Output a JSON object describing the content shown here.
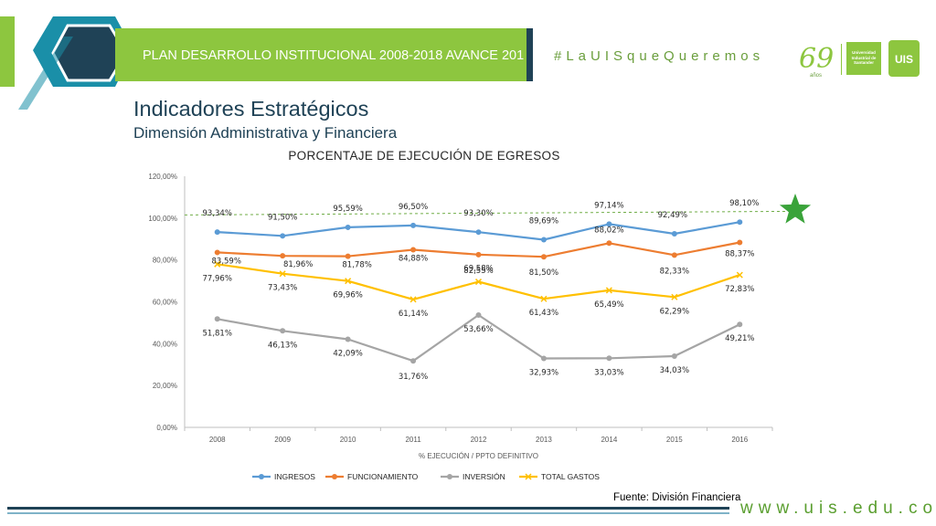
{
  "header": {
    "banner_text": "PLAN DESARROLLO INSTITUCIONAL 2008-2018 AVANCE 201",
    "hashtag": "#LaUISqueQueremos",
    "logo_69_text": "69",
    "logo_69_sub": "años",
    "logo_box_text": "Universidad Industrial de Santander",
    "logo_uis_text": "UIS",
    "title": "Indicadores Estratégicos",
    "subtitle": "Dimensión Administrativa y Financiera"
  },
  "footer": {
    "source": "Fuente: División Financiera",
    "website": "www.uis.edu.co"
  },
  "colors": {
    "green": "#8dc63f",
    "navy": "#1f4256",
    "teal": "#1a8fa8",
    "ingresos": "#5b9bd5",
    "funcionamiento": "#ed7d31",
    "inversion": "#a5a5a5",
    "total_gastos": "#ffc000",
    "target": "#70ad47",
    "star": "#3aa33a"
  },
  "chart_data": {
    "type": "line",
    "title": "PORCENTAJE DE EJECUCIÓN DE EGRESOS",
    "xlabel": "% EJECUCIÓN / PPTO DEFINITIVO",
    "ylabel": "",
    "categories": [
      "2008",
      "2009",
      "2010",
      "2011",
      "2012",
      "2013",
      "2014",
      "2015",
      "2016"
    ],
    "y_ticks": [
      "0,00%",
      "20,00%",
      "40,00%",
      "60,00%",
      "80,00%",
      "100,00%",
      "120,00%"
    ],
    "ylim": [
      0,
      120
    ],
    "grid": false,
    "legend_position": "bottom",
    "target_line": 101.5,
    "series": [
      {
        "name": "INGRESOS",
        "color": "#5b9bd5",
        "marker": "circle",
        "values": [
          93.34,
          91.5,
          95.59,
          96.5,
          93.3,
          89.69,
          97.14,
          92.49,
          98.1
        ],
        "labels": [
          "93,34%",
          "91,50%",
          "95,59%",
          "96,50%",
          "93,30%",
          "89,69%",
          "97,14%",
          "92,49%",
          "98,10%"
        ]
      },
      {
        "name": "FUNCIONAMIENTO",
        "color": "#ed7d31",
        "marker": "circle",
        "values": [
          83.59,
          81.96,
          81.78,
          84.88,
          82.55,
          81.5,
          88.02,
          82.33,
          88.37
        ],
        "labels": [
          "83,59%",
          "81,96%",
          "81,78%",
          "84,88%",
          "82,55%",
          "81,50%",
          "88,02%",
          "82,33%",
          "88,37%"
        ]
      },
      {
        "name": "INVERSIÓN",
        "color": "#a5a5a5",
        "marker": "circle",
        "values": [
          51.81,
          46.13,
          42.09,
          31.76,
          53.66,
          32.93,
          33.03,
          34.03,
          49.21
        ],
        "labels": [
          "51,81%",
          "46,13%",
          "42,09%",
          "31,76%",
          "53,66%",
          "32,93%",
          "33,03%",
          "34,03%",
          "49,21%"
        ]
      },
      {
        "name": "TOTAL GASTOS",
        "color": "#ffc000",
        "marker": "x",
        "values": [
          77.96,
          73.43,
          69.96,
          61.14,
          69.58,
          61.43,
          65.49,
          62.29,
          72.83
        ],
        "labels": [
          "77,96%",
          "73,43%",
          "69,96%",
          "61,14%",
          "69,58%",
          "61,43%",
          "65,49%",
          "62,29%",
          "72,83%"
        ]
      }
    ]
  }
}
